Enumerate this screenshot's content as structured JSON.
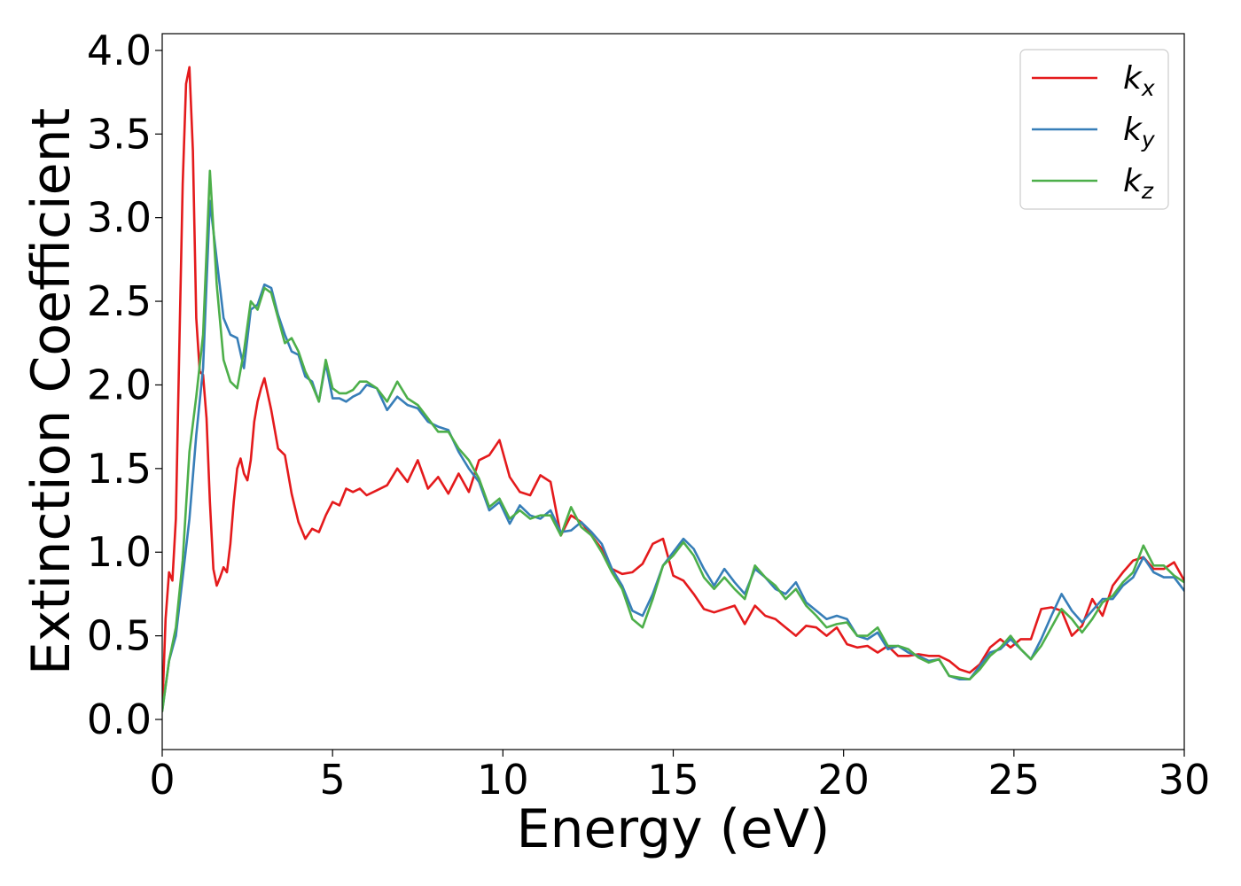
{
  "chart_data": {
    "type": "line",
    "title": "",
    "xlabel": "Energy (eV)",
    "ylabel": "Extinction Coefficient",
    "xlim": [
      0,
      30
    ],
    "ylim": [
      -0.18,
      4.1
    ],
    "xticks": [
      0,
      5,
      10,
      15,
      20,
      25,
      30
    ],
    "yticks": [
      0.0,
      0.5,
      1.0,
      1.5,
      2.0,
      2.5,
      3.0,
      3.5,
      4.0
    ],
    "xtick_labels": [
      "0",
      "5",
      "10",
      "15",
      "20",
      "25",
      "30"
    ],
    "ytick_labels": [
      "0.0",
      "0.5",
      "1.0",
      "1.5",
      "2.0",
      "2.5",
      "3.0",
      "3.5",
      "4.0"
    ],
    "grid": false,
    "legend_position": "top-right",
    "series": [
      {
        "name": "k_x",
        "label_main": "k",
        "label_sub": "x",
        "color": "#e41a1c",
        "x": [
          0,
          0.1,
          0.2,
          0.3,
          0.4,
          0.5,
          0.6,
          0.7,
          0.8,
          0.9,
          1.0,
          1.1,
          1.2,
          1.3,
          1.4,
          1.5,
          1.6,
          1.7,
          1.8,
          1.9,
          2.0,
          2.1,
          2.2,
          2.3,
          2.4,
          2.5,
          2.6,
          2.7,
          2.8,
          2.9,
          3.0,
          3.2,
          3.4,
          3.6,
          3.8,
          4.0,
          4.2,
          4.4,
          4.6,
          4.8,
          5.0,
          5.2,
          5.4,
          5.6,
          5.8,
          6.0,
          6.3,
          6.6,
          6.9,
          7.2,
          7.5,
          7.8,
          8.1,
          8.4,
          8.7,
          9.0,
          9.3,
          9.6,
          9.9,
          10.2,
          10.5,
          10.8,
          11.1,
          11.4,
          11.7,
          12.0,
          12.3,
          12.6,
          12.9,
          13.2,
          13.5,
          13.8,
          14.1,
          14.4,
          14.7,
          15.0,
          15.3,
          15.6,
          15.9,
          16.2,
          16.5,
          16.8,
          17.1,
          17.4,
          17.7,
          18.0,
          18.3,
          18.6,
          18.9,
          19.2,
          19.5,
          19.8,
          20.1,
          20.4,
          20.7,
          21.0,
          21.3,
          21.6,
          21.9,
          22.2,
          22.5,
          22.8,
          23.1,
          23.4,
          23.7,
          24.0,
          24.3,
          24.6,
          24.9,
          25.2,
          25.5,
          25.8,
          26.1,
          26.4,
          26.7,
          27.0,
          27.3,
          27.6,
          27.9,
          28.2,
          28.5,
          28.8,
          29.1,
          29.4,
          29.7,
          30.0
        ],
        "y": [
          0.05,
          0.6,
          0.88,
          0.83,
          1.2,
          2.2,
          3.2,
          3.8,
          3.9,
          3.4,
          2.4,
          2.08,
          2.06,
          1.8,
          1.3,
          0.9,
          0.8,
          0.85,
          0.91,
          0.88,
          1.05,
          1.3,
          1.5,
          1.56,
          1.47,
          1.43,
          1.55,
          1.78,
          1.9,
          1.98,
          2.04,
          1.85,
          1.62,
          1.58,
          1.35,
          1.18,
          1.08,
          1.14,
          1.12,
          1.22,
          1.3,
          1.28,
          1.38,
          1.36,
          1.38,
          1.34,
          1.37,
          1.4,
          1.5,
          1.42,
          1.55,
          1.38,
          1.45,
          1.35,
          1.47,
          1.36,
          1.55,
          1.58,
          1.67,
          1.45,
          1.36,
          1.34,
          1.46,
          1.42,
          1.1,
          1.22,
          1.18,
          1.1,
          1.02,
          0.9,
          0.87,
          0.88,
          0.93,
          1.05,
          1.08,
          0.86,
          0.83,
          0.75,
          0.66,
          0.64,
          0.66,
          0.68,
          0.57,
          0.68,
          0.62,
          0.6,
          0.55,
          0.5,
          0.56,
          0.55,
          0.5,
          0.55,
          0.45,
          0.43,
          0.44,
          0.4,
          0.44,
          0.38,
          0.38,
          0.39,
          0.38,
          0.38,
          0.35,
          0.3,
          0.28,
          0.33,
          0.43,
          0.48,
          0.43,
          0.48,
          0.48,
          0.66,
          0.67,
          0.65,
          0.5,
          0.56,
          0.72,
          0.62,
          0.8,
          0.88,
          0.95,
          0.97,
          0.9,
          0.9,
          0.94,
          0.83
        ]
      },
      {
        "name": "k_y",
        "label_main": "k",
        "label_sub": "y",
        "color": "#377eb8",
        "x": [
          0,
          0.2,
          0.4,
          0.6,
          0.8,
          1.0,
          1.2,
          1.4,
          1.6,
          1.8,
          2.0,
          2.2,
          2.4,
          2.6,
          2.8,
          3.0,
          3.2,
          3.4,
          3.6,
          3.8,
          4.0,
          4.2,
          4.4,
          4.6,
          4.8,
          5.0,
          5.2,
          5.4,
          5.6,
          5.8,
          6.0,
          6.3,
          6.6,
          6.9,
          7.2,
          7.5,
          7.8,
          8.1,
          8.4,
          8.7,
          9.0,
          9.3,
          9.6,
          9.9,
          10.2,
          10.5,
          10.8,
          11.1,
          11.4,
          11.7,
          12.0,
          12.3,
          12.6,
          12.9,
          13.2,
          13.5,
          13.8,
          14.1,
          14.4,
          14.7,
          15.0,
          15.3,
          15.6,
          15.9,
          16.2,
          16.5,
          16.8,
          17.1,
          17.4,
          17.7,
          18.0,
          18.3,
          18.6,
          18.9,
          19.2,
          19.5,
          19.8,
          20.1,
          20.4,
          20.7,
          21.0,
          21.3,
          21.6,
          21.9,
          22.2,
          22.5,
          22.8,
          23.1,
          23.4,
          23.7,
          24.0,
          24.3,
          24.6,
          24.9,
          25.2,
          25.5,
          25.8,
          26.1,
          26.4,
          26.7,
          27.0,
          27.3,
          27.6,
          27.9,
          28.2,
          28.5,
          28.8,
          29.1,
          29.4,
          29.7,
          30.0
        ],
        "y": [
          0.05,
          0.35,
          0.5,
          0.85,
          1.2,
          1.7,
          2.1,
          3.1,
          2.75,
          2.4,
          2.3,
          2.28,
          2.1,
          2.45,
          2.48,
          2.6,
          2.58,
          2.42,
          2.3,
          2.2,
          2.18,
          2.05,
          2.02,
          1.9,
          2.13,
          1.92,
          1.92,
          1.9,
          1.93,
          1.95,
          2.0,
          1.98,
          1.85,
          1.93,
          1.88,
          1.86,
          1.78,
          1.75,
          1.73,
          1.6,
          1.5,
          1.42,
          1.25,
          1.3,
          1.17,
          1.28,
          1.22,
          1.2,
          1.25,
          1.12,
          1.13,
          1.18,
          1.12,
          1.05,
          0.9,
          0.8,
          0.65,
          0.62,
          0.75,
          0.92,
          1.0,
          1.08,
          1.02,
          0.9,
          0.8,
          0.9,
          0.82,
          0.75,
          0.9,
          0.85,
          0.78,
          0.75,
          0.82,
          0.7,
          0.65,
          0.6,
          0.62,
          0.6,
          0.5,
          0.48,
          0.52,
          0.42,
          0.44,
          0.4,
          0.38,
          0.35,
          0.36,
          0.26,
          0.24,
          0.24,
          0.32,
          0.4,
          0.42,
          0.48,
          0.42,
          0.36,
          0.48,
          0.62,
          0.75,
          0.65,
          0.58,
          0.65,
          0.72,
          0.72,
          0.8,
          0.85,
          0.97,
          0.88,
          0.85,
          0.85,
          0.77
        ]
      },
      {
        "name": "k_z",
        "label_main": "k",
        "label_sub": "z",
        "color": "#4daf4a",
        "x": [
          0,
          0.2,
          0.4,
          0.6,
          0.8,
          1.0,
          1.2,
          1.4,
          1.6,
          1.8,
          2.0,
          2.2,
          2.4,
          2.6,
          2.8,
          3.0,
          3.2,
          3.4,
          3.6,
          3.8,
          4.0,
          4.2,
          4.4,
          4.6,
          4.8,
          5.0,
          5.2,
          5.4,
          5.6,
          5.8,
          6.0,
          6.3,
          6.6,
          6.9,
          7.2,
          7.5,
          7.8,
          8.1,
          8.4,
          8.7,
          9.0,
          9.3,
          9.6,
          9.9,
          10.2,
          10.5,
          10.8,
          11.1,
          11.4,
          11.7,
          12.0,
          12.3,
          12.6,
          12.9,
          13.2,
          13.5,
          13.8,
          14.1,
          14.4,
          14.7,
          15.0,
          15.3,
          15.6,
          15.9,
          16.2,
          16.5,
          16.8,
          17.1,
          17.4,
          17.7,
          18.0,
          18.3,
          18.6,
          18.9,
          19.2,
          19.5,
          19.8,
          20.1,
          20.4,
          20.7,
          21.0,
          21.3,
          21.6,
          21.9,
          22.2,
          22.5,
          22.8,
          23.1,
          23.4,
          23.7,
          24.0,
          24.3,
          24.6,
          24.9,
          25.2,
          25.5,
          25.8,
          26.1,
          26.4,
          26.7,
          27.0,
          27.3,
          27.6,
          27.9,
          28.2,
          28.5,
          28.8,
          29.1,
          29.4,
          29.7,
          30.0
        ],
        "y": [
          0.05,
          0.35,
          0.55,
          0.95,
          1.6,
          1.93,
          2.3,
          3.28,
          2.6,
          2.15,
          2.02,
          1.98,
          2.2,
          2.5,
          2.45,
          2.58,
          2.55,
          2.4,
          2.25,
          2.28,
          2.2,
          2.08,
          2.0,
          1.9,
          2.15,
          1.98,
          1.95,
          1.95,
          1.97,
          2.02,
          2.02,
          1.98,
          1.9,
          2.02,
          1.92,
          1.88,
          1.8,
          1.72,
          1.72,
          1.62,
          1.55,
          1.44,
          1.27,
          1.32,
          1.2,
          1.25,
          1.2,
          1.22,
          1.22,
          1.1,
          1.27,
          1.15,
          1.1,
          1.0,
          0.88,
          0.78,
          0.6,
          0.55,
          0.72,
          0.92,
          0.98,
          1.06,
          0.98,
          0.85,
          0.78,
          0.85,
          0.78,
          0.72,
          0.92,
          0.85,
          0.8,
          0.72,
          0.78,
          0.68,
          0.62,
          0.55,
          0.57,
          0.58,
          0.5,
          0.5,
          0.55,
          0.44,
          0.44,
          0.42,
          0.37,
          0.34,
          0.36,
          0.26,
          0.25,
          0.24,
          0.3,
          0.38,
          0.43,
          0.5,
          0.42,
          0.36,
          0.44,
          0.55,
          0.66,
          0.6,
          0.52,
          0.6,
          0.7,
          0.74,
          0.82,
          0.88,
          1.04,
          0.92,
          0.92,
          0.86,
          0.82
        ]
      }
    ]
  }
}
